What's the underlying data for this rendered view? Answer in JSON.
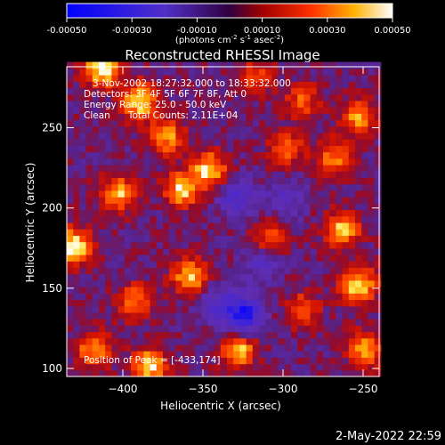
{
  "colorbar": {
    "ticks": [
      "-0.00050",
      "-0.00030",
      "-0.00010",
      "0.00010",
      "0.00030",
      "0.00050"
    ],
    "unit_label": "(photons cm",
    "unit_exp1": "-2",
    "unit_mid": " s",
    "unit_exp2": "-1",
    "unit_mid2": " asec",
    "unit_exp3": "-2",
    "unit_end": ")",
    "range": [
      -0.0005,
      0.0005
    ]
  },
  "chart_data": {
    "type": "heatmap",
    "title": "Reconstructed RHESSI Image",
    "xlabel": "Heliocentric X (arcsec)",
    "ylabel": "Heliocentric Y (arcsec)",
    "xlim": [
      -435,
      -240
    ],
    "ylim": [
      95,
      288
    ],
    "x_ticks": [
      -400,
      -350,
      -300,
      -250
    ],
    "y_ticks": [
      100,
      150,
      200,
      250
    ],
    "x_tick_labels": [
      "−400",
      "−350",
      "−300",
      "−250"
    ],
    "y_tick_labels": [
      "100",
      "150",
      "200",
      "250"
    ],
    "colormap": [
      "#0000ff",
      "#5a2fc8",
      "#a00000",
      "#ff3a00",
      "#ffa000",
      "#ffffff"
    ],
    "peaks": [
      {
        "x": -433,
        "y": 174,
        "value": 1.0
      },
      {
        "x": -415,
        "y": 285,
        "value": 0.95
      },
      {
        "x": -392,
        "y": 265,
        "value": 0.9
      },
      {
        "x": -375,
        "y": 243,
        "value": 0.7
      },
      {
        "x": -348,
        "y": 222,
        "value": 0.85
      },
      {
        "x": -365,
        "y": 210,
        "value": 0.8
      },
      {
        "x": -405,
        "y": 207,
        "value": 0.75
      },
      {
        "x": -360,
        "y": 155,
        "value": 0.8
      },
      {
        "x": -395,
        "y": 140,
        "value": 0.6
      },
      {
        "x": -420,
        "y": 110,
        "value": 0.7
      },
      {
        "x": -385,
        "y": 100,
        "value": 0.85
      },
      {
        "x": -330,
        "y": 110,
        "value": 0.8
      },
      {
        "x": -310,
        "y": 178,
        "value": 0.6
      },
      {
        "x": -290,
        "y": 135,
        "value": 0.5
      },
      {
        "x": -255,
        "y": 150,
        "value": 0.9
      },
      {
        "x": -265,
        "y": 185,
        "value": 0.75
      },
      {
        "x": -250,
        "y": 110,
        "value": 0.7
      },
      {
        "x": -300,
        "y": 235,
        "value": 0.55
      },
      {
        "x": -270,
        "y": 230,
        "value": 0.6
      },
      {
        "x": -255,
        "y": 255,
        "value": 0.65
      },
      {
        "x": -290,
        "y": 265,
        "value": 0.5
      },
      {
        "x": -320,
        "y": 280,
        "value": 0.45
      }
    ],
    "dips": [
      {
        "x": -327,
        "y": 132,
        "value": -0.9
      },
      {
        "x": -330,
        "y": 205,
        "value": -0.5
      },
      {
        "x": -315,
        "y": 165,
        "value": -0.4
      },
      {
        "x": -300,
        "y": 205,
        "value": -0.35
      },
      {
        "x": -345,
        "y": 140,
        "value": -0.4
      }
    ],
    "annotations": {
      "time": "3-Nov-2002 18:27:32.000 to 18:33:32.000",
      "detectors": "Detectors: 3F 4F 5F 6F 7F 8F, Att 0",
      "energy": "Energy Range: 25.0 - 50.0 keV",
      "clean": "Clean      Total Counts: 2.11E+04",
      "peak": "Position of Peak = [-433,174]"
    }
  },
  "timestamp": "2-May-2022 22:59"
}
